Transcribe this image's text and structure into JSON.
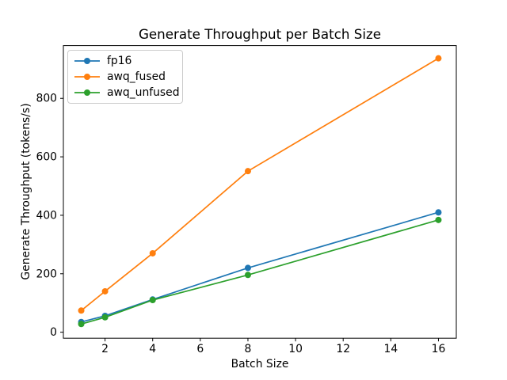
{
  "chart_data": {
    "type": "line",
    "title": "Generate Throughput per Batch Size",
    "xlabel": "Batch Size",
    "ylabel": "Generate Throughput (tokens/s)",
    "x": [
      1,
      2,
      4,
      8,
      16
    ],
    "series": [
      {
        "name": "fp16",
        "color": "#1f77b4",
        "values": [
          35,
          56,
          112,
          220,
          410
        ]
      },
      {
        "name": "awq_fused",
        "color": "#ff7f0e",
        "values": [
          74,
          140,
          270,
          551,
          937
        ]
      },
      {
        "name": "awq_unfused",
        "color": "#2ca02c",
        "values": [
          28,
          51,
          110,
          196,
          384
        ]
      }
    ],
    "xticks": [
      2,
      4,
      6,
      8,
      10,
      12,
      14,
      16
    ],
    "yticks": [
      0,
      200,
      400,
      600,
      800
    ],
    "xlim": [
      0.25,
      16.75
    ],
    "ylim": [
      -20.5,
      980.5
    ],
    "grid": false,
    "legend_position": "upper left",
    "marker": "circle",
    "axis_color": "#000000",
    "background_color": "#ffffff"
  }
}
